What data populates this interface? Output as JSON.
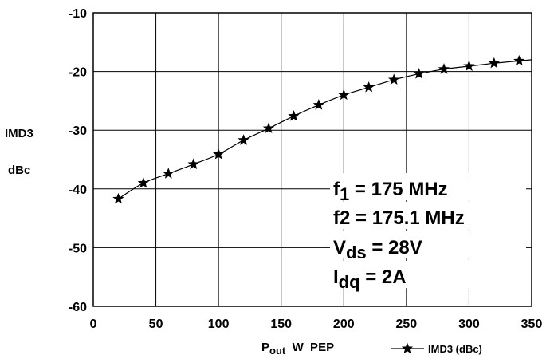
{
  "chart_data": {
    "type": "line",
    "title": "",
    "ylabel_line1": "IMD3",
    "ylabel_line2": "dBc",
    "xlabel": {
      "main": "P",
      "subscript": "out",
      "rest": "  W  PEP"
    },
    "xlim": [
      0,
      350
    ],
    "ylim": [
      -60,
      -10
    ],
    "x_ticks": [
      0,
      50,
      100,
      150,
      200,
      250,
      300,
      350
    ],
    "y_ticks": [
      -60,
      -50,
      -40,
      -30,
      -20,
      -10
    ],
    "grid": true,
    "legend_position": "bottom",
    "series": [
      {
        "name": "IMD3 (dBc)",
        "marker": "star",
        "color": "#000000",
        "x": [
          20,
          40,
          60,
          80,
          100,
          120,
          140,
          160,
          180,
          200,
          220,
          240,
          260,
          280,
          300,
          320,
          340
        ],
        "y": [
          -41.7,
          -39.0,
          -37.4,
          -35.8,
          -34.1,
          -31.7,
          -29.7,
          -27.6,
          -25.7,
          -24.0,
          -22.7,
          -21.4,
          -20.4,
          -19.6,
          -19.1,
          -18.6,
          -18.2
        ]
      }
    ],
    "annotations": [
      {
        "main": "f",
        "sub": "1",
        "rest": "  = 175 MHz"
      },
      {
        "main": "f2",
        "sub": "",
        "rest": "  = 175.1 MHz"
      },
      {
        "main": "V",
        "sub": "ds",
        "rest": " = 28V"
      },
      {
        "main": "I",
        "sub": "dq",
        "rest": " = 2A"
      }
    ]
  }
}
